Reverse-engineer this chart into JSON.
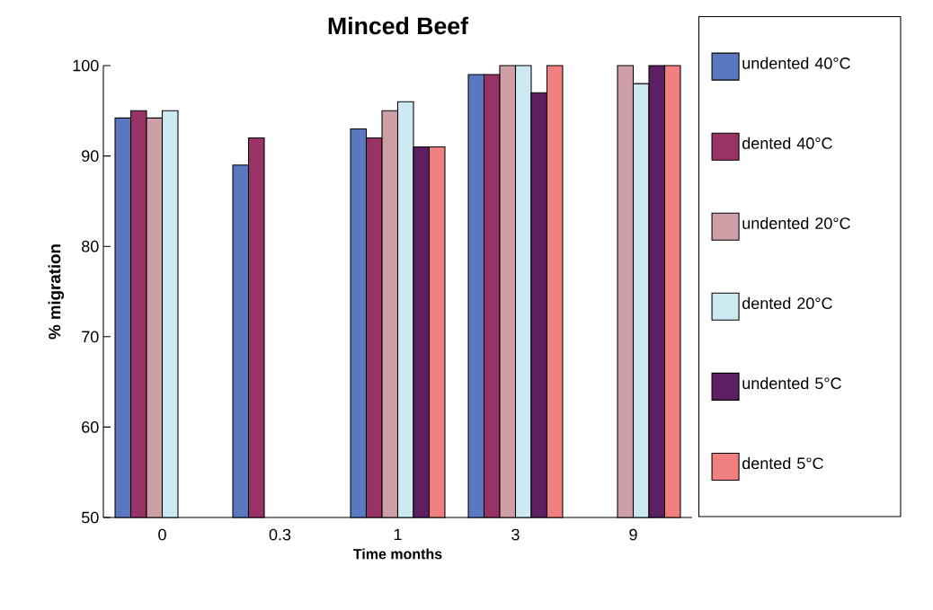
{
  "chart_data": {
    "type": "bar",
    "title": "Minced Beef",
    "xlabel": "Time months",
    "ylabel": "% migration",
    "categories": [
      "0",
      "0.3",
      "1",
      "3",
      "9"
    ],
    "series": [
      {
        "name": "undented 40°C",
        "color": "#5a78c0",
        "values": [
          94.2,
          89,
          93,
          99,
          null
        ]
      },
      {
        "name": "dented 40°C",
        "color": "#993366",
        "values": [
          95,
          92,
          92,
          99,
          null
        ]
      },
      {
        "name": "undented 20°C",
        "color": "#cf9fa8",
        "values": [
          94.2,
          null,
          95,
          100,
          100
        ]
      },
      {
        "name": "dented 20°C",
        "color": "#cce8f0",
        "values": [
          95,
          null,
          96,
          100,
          98
        ]
      },
      {
        "name": "undented 5°C",
        "color": "#5e1f62",
        "values": [
          null,
          null,
          91,
          97,
          100
        ]
      },
      {
        "name": "dented 5°C",
        "color": "#f08080",
        "values": [
          null,
          null,
          91,
          100,
          100
        ]
      }
    ],
    "ylim": [
      50,
      100
    ],
    "yticks": [
      50,
      60,
      70,
      80,
      90,
      100
    ],
    "grid": false,
    "legend": "right"
  }
}
